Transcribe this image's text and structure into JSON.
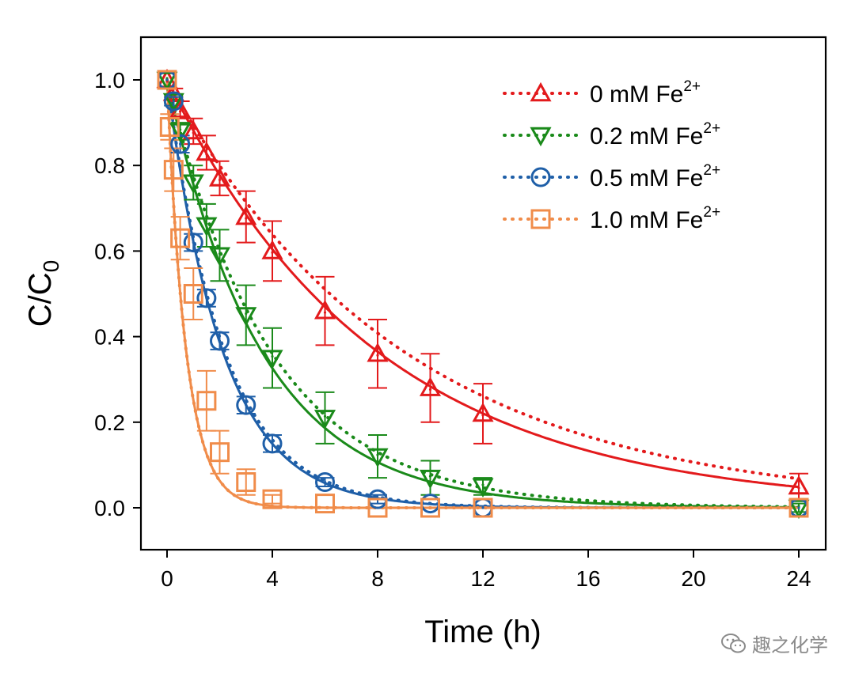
{
  "chart_data": {
    "type": "scatter",
    "title": "",
    "xlabel": "Time (h)",
    "ylabel_main": "C/C",
    "ylabel_sub": "0",
    "xlim": [
      -1,
      25
    ],
    "ylim": [
      -0.1,
      1.1
    ],
    "xticks": [
      0,
      4,
      8,
      12,
      16,
      20,
      24
    ],
    "yticks": [
      0.0,
      0.2,
      0.4,
      0.6,
      0.8,
      1.0
    ],
    "ytick_labels": [
      "0.0",
      "0.2",
      "0.4",
      "0.6",
      "0.8",
      "1.0"
    ],
    "legend_position": "top-right",
    "fit_note": "solid = fitted curve, dotted = model curve",
    "series": [
      {
        "name": "0 mM Fe",
        "name_sup": "2+",
        "color": "#e31a1c",
        "marker": "triangle-up",
        "k_solid": 0.126,
        "k_dotted": 0.112,
        "x": [
          0,
          0.25,
          0.5,
          1,
          1.5,
          2,
          3,
          4,
          6,
          8,
          10,
          12,
          24
        ],
        "y": [
          1.0,
          0.97,
          0.93,
          0.88,
          0.83,
          0.77,
          0.68,
          0.6,
          0.46,
          0.36,
          0.28,
          0.22,
          0.05
        ],
        "err": [
          0,
          0.01,
          0.02,
          0.03,
          0.04,
          0.04,
          0.06,
          0.07,
          0.08,
          0.08,
          0.08,
          0.07,
          0.03
        ]
      },
      {
        "name": "0.2 mM Fe",
        "name_sup": "2+",
        "color": "#1a8a1a",
        "marker": "triangle-down",
        "k_solid": 0.28,
        "k_dotted": 0.255,
        "x": [
          0,
          0.25,
          0.5,
          1,
          1.5,
          2,
          3,
          4,
          6,
          8,
          10,
          12,
          24
        ],
        "y": [
          1.0,
          0.95,
          0.88,
          0.76,
          0.66,
          0.59,
          0.45,
          0.35,
          0.21,
          0.12,
          0.07,
          0.05,
          0.0
        ],
        "err": [
          0,
          0.01,
          0.02,
          0.04,
          0.05,
          0.06,
          0.07,
          0.07,
          0.06,
          0.05,
          0.04,
          0.02,
          0.01
        ]
      },
      {
        "name": "0.5 mM Fe",
        "name_sup": "2+",
        "color": "#1f5fa8",
        "marker": "circle",
        "k_solid": 0.475,
        "k_dotted": 0.46,
        "x": [
          0,
          0.25,
          0.5,
          1,
          1.5,
          2,
          3,
          4,
          6,
          8,
          10,
          12,
          24
        ],
        "y": [
          1.0,
          0.95,
          0.85,
          0.62,
          0.49,
          0.39,
          0.24,
          0.15,
          0.06,
          0.02,
          0.01,
          0.0,
          0.0
        ],
        "err": [
          0,
          0.01,
          0.02,
          0.02,
          0.02,
          0.02,
          0.02,
          0.02,
          0.01,
          0.01,
          0.0,
          0.0,
          0.0
        ]
      },
      {
        "name": "1.0 mM Fe",
        "name_sup": "2+",
        "color": "#f08c4a",
        "marker": "square",
        "k_solid": 1.38,
        "k_dotted": 1.38,
        "x": [
          0,
          0.1,
          0.25,
          0.5,
          1,
          1.5,
          2,
          3,
          4,
          6,
          8,
          10,
          12,
          24
        ],
        "y": [
          1.0,
          0.89,
          0.79,
          0.63,
          0.5,
          0.25,
          0.13,
          0.06,
          0.02,
          0.01,
          0.0,
          0.0,
          0.0,
          0.0
        ],
        "err": [
          0,
          0.03,
          0.05,
          0.05,
          0.06,
          0.07,
          0.05,
          0.03,
          0.01,
          0.0,
          0.0,
          0.0,
          0.0,
          0.0
        ]
      }
    ]
  },
  "watermark": {
    "text": "趣之化学",
    "icon": "wechat-icon"
  }
}
